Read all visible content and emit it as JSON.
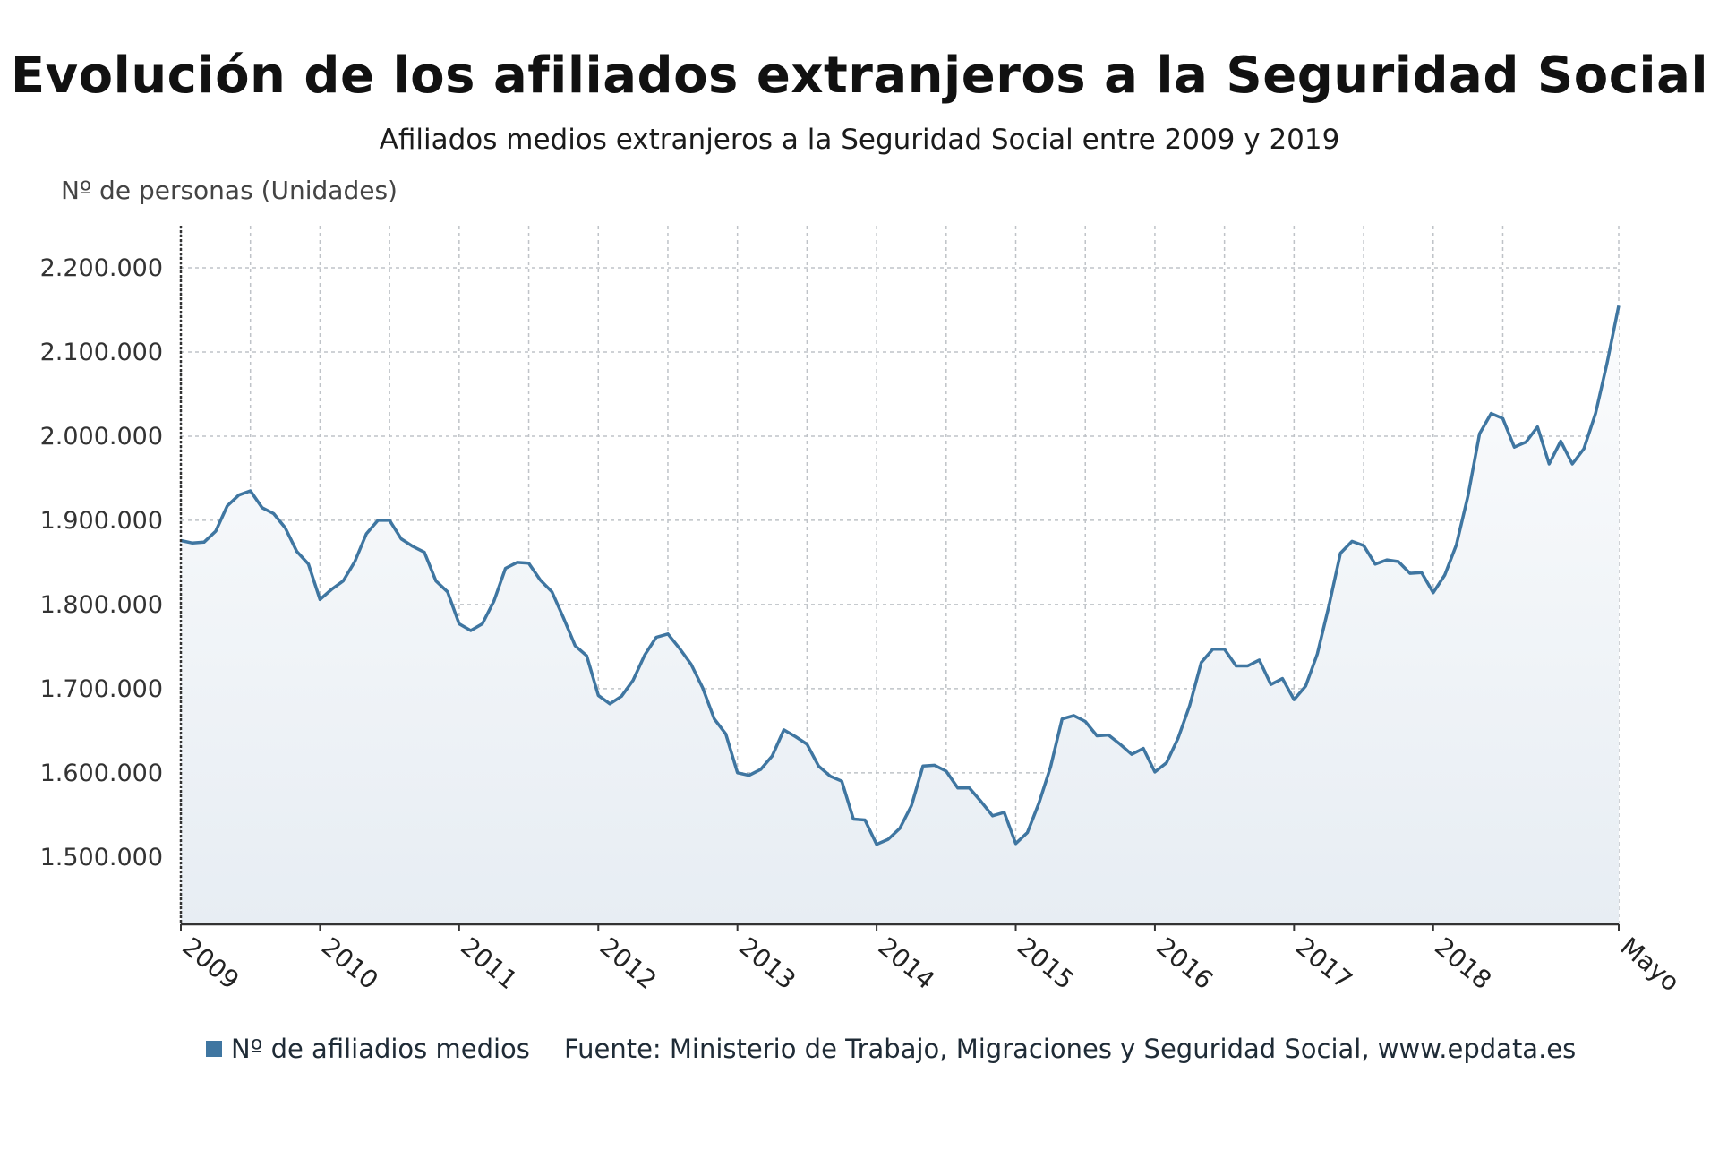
{
  "title": "Evolución de los afiliados extranjeros a la Seguridad Social",
  "subtitle": "Afiliados medios extranjeros a la Seguridad Social entre 2009 y 2019",
  "unit_label": "Nº de personas (Unidades)",
  "legend_label": "Nº de afiliadios medios",
  "source": "Fuente: Ministerio de Trabajo, Migraciones y Seguridad Social, www.epdata.es",
  "colors": {
    "line": "#3f76a1",
    "fill_top": "#fbfcfd",
    "fill_bottom": "#e7edf3",
    "grid": "#bfc3c8"
  },
  "chart_data": {
    "type": "area",
    "ylabel": "Nº de personas (Unidades)",
    "ylim": [
      1420000,
      2250000
    ],
    "y_ticks": [
      {
        "value": 1500000,
        "label": "1.500.000"
      },
      {
        "value": 1600000,
        "label": "1.600.000"
      },
      {
        "value": 1700000,
        "label": "1.700.000"
      },
      {
        "value": 1800000,
        "label": "1.800.000"
      },
      {
        "value": 1900000,
        "label": "1.900.000"
      },
      {
        "value": 2000000,
        "label": "2.000.000"
      },
      {
        "value": 2100000,
        "label": "2.100.000"
      },
      {
        "value": 2200000,
        "label": "2.200.000"
      }
    ],
    "x_ticks": [
      "2009",
      "2010",
      "2011",
      "2012",
      "2013",
      "2014",
      "2015",
      "2016",
      "2017",
      "2018",
      "Mayo"
    ],
    "grid": true,
    "series": [
      {
        "name": "Nº de afiliadios medios",
        "values": [
          1876000,
          1873000,
          1874000,
          1887000,
          1917000,
          1930000,
          1935000,
          1915000,
          1908000,
          1891000,
          1863000,
          1848000,
          1806000,
          1818000,
          1828000,
          1851000,
          1884000,
          1900000,
          1900000,
          1878000,
          1869000,
          1862000,
          1828000,
          1815000,
          1777000,
          1769000,
          1777000,
          1804000,
          1843000,
          1850000,
          1849000,
          1829000,
          1815000,
          1784000,
          1751000,
          1739000,
          1692000,
          1682000,
          1691000,
          1710000,
          1740000,
          1761000,
          1765000,
          1748000,
          1729000,
          1701000,
          1664000,
          1646000,
          1600000,
          1597000,
          1604000,
          1620000,
          1651000,
          1643000,
          1634000,
          1608000,
          1596000,
          1590000,
          1545000,
          1544000,
          1515000,
          1521000,
          1534000,
          1561000,
          1608000,
          1609000,
          1602000,
          1582000,
          1582000,
          1566000,
          1549000,
          1553000,
          1516000,
          1529000,
          1564000,
          1607000,
          1664000,
          1668000,
          1661000,
          1644000,
          1645000,
          1634000,
          1622000,
          1629000,
          1601000,
          1612000,
          1641000,
          1680000,
          1731000,
          1747000,
          1747000,
          1727000,
          1727000,
          1734000,
          1705000,
          1712000,
          1687000,
          1703000,
          1741000,
          1798000,
          1861000,
          1875000,
          1870000,
          1848000,
          1853000,
          1851000,
          1837000,
          1838000,
          1814000,
          1835000,
          1871000,
          1929000,
          2003000,
          2027000,
          2021000,
          1987000,
          1993000,
          2011000,
          1967000,
          1994000,
          1967000,
          1985000,
          2027000,
          2087000,
          2155000
        ]
      }
    ]
  }
}
